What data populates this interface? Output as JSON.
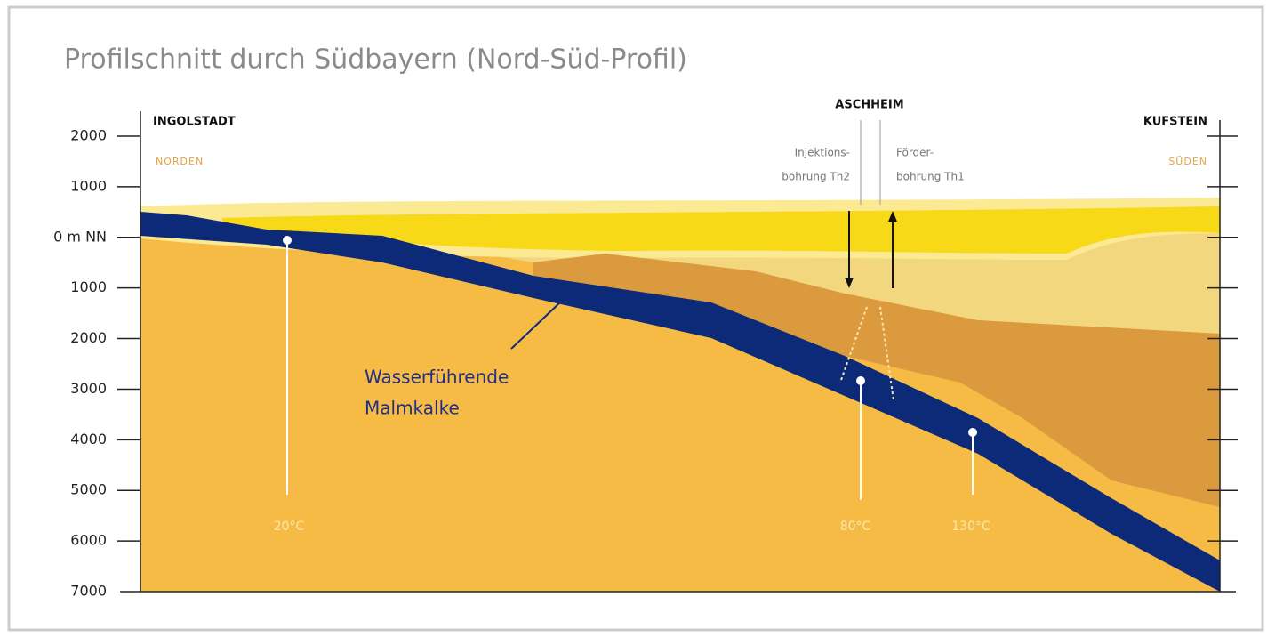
{
  "header": {
    "title": "Profilschnitt durch Südbayern (Nord-Süd-Profil)"
  },
  "axis": {
    "labels": [
      "2000",
      "1000",
      "0 m NN",
      "1000",
      "2000",
      "3000",
      "4000",
      "5000",
      "6000",
      "7000"
    ]
  },
  "places": {
    "north": {
      "name": "INGOLSTADT",
      "direction": "NORDEN"
    },
    "center": {
      "name": "ASCHHEIM",
      "injection": [
        "Injektions-",
        "bohrung Th2"
      ],
      "production": [
        "Förder-",
        "bohrung Th1"
      ]
    },
    "south": {
      "name": "KUFSTEIN",
      "direction": "SÜDEN"
    }
  },
  "annotations": {
    "aquifer": [
      "Wasserführende",
      "Malmkalke"
    ]
  },
  "temperatures": [
    "20°C",
    "80°C",
    "130°C"
  ]
}
